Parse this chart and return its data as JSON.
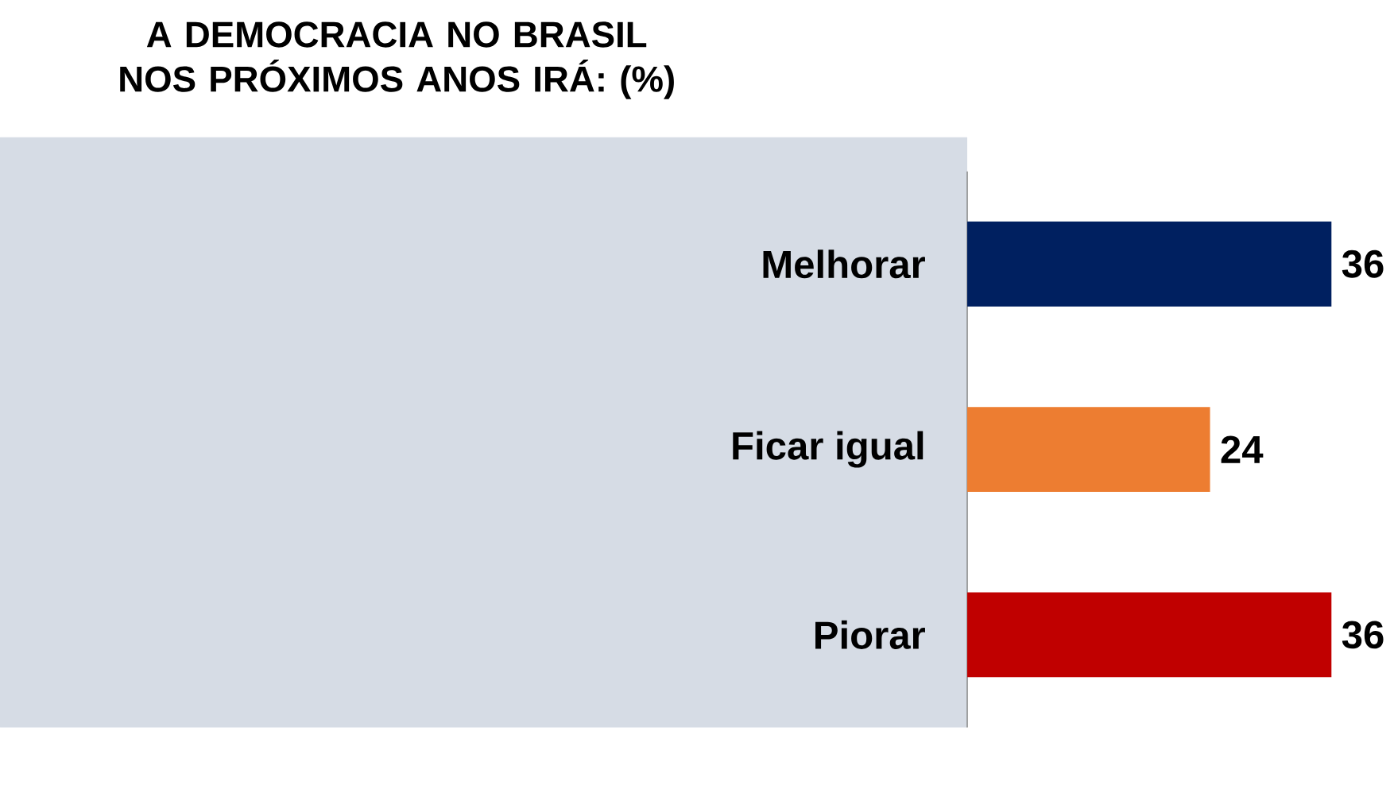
{
  "chart_data": {
    "type": "bar",
    "orientation": "horizontal",
    "title": "A DEMOCRACIA NO BRASIL NOS PRÓXIMOS ANOS IRÁ: (%)",
    "categories": [
      "Melhorar",
      "Ficar igual",
      "Piorar"
    ],
    "values": [
      36,
      24,
      36
    ],
    "colors": [
      "#002060",
      "#ED7D31",
      "#C00000"
    ],
    "data_labels": true
  }
}
